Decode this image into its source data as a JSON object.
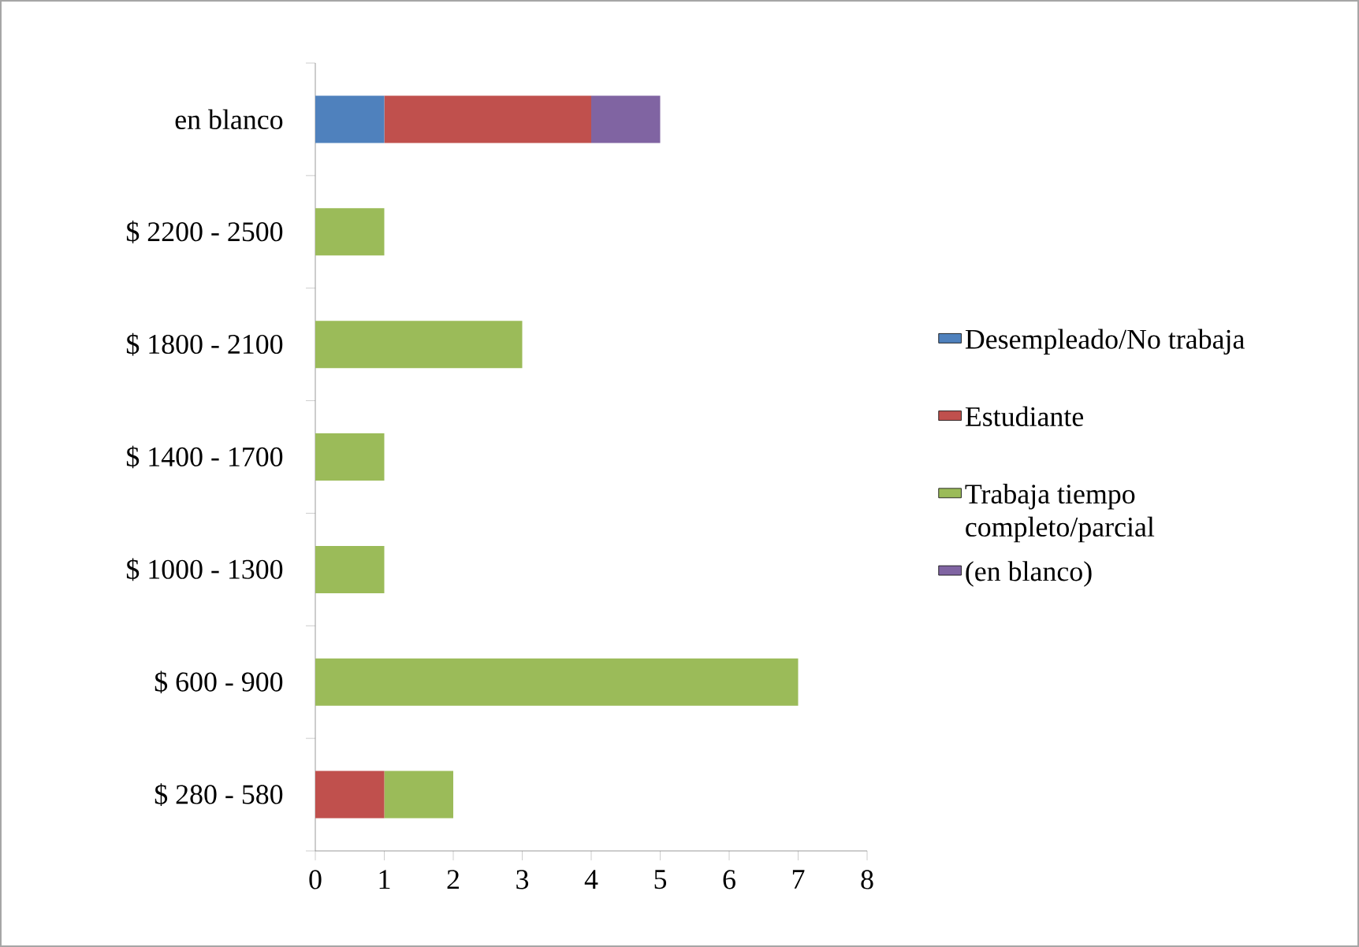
{
  "chart_data": {
    "type": "bar",
    "orientation": "horizontal",
    "stacked": true,
    "categories": [
      "en blanco",
      "$ 2200 - 2500",
      "$ 1800 - 2100",
      "$ 1400 - 1700",
      "$ 1000 - 1300",
      "$ 600 - 900",
      "$ 280 - 580"
    ],
    "series": [
      {
        "name": "Desempleado/No trabaja",
        "color": "#4f81bd",
        "values": [
          1,
          null,
          null,
          null,
          null,
          null,
          null
        ]
      },
      {
        "name": "Estudiante",
        "color": "#c0504d",
        "values": [
          3,
          null,
          null,
          null,
          null,
          null,
          1
        ]
      },
      {
        "name": "Trabaja tiempo completo/parcial",
        "color": "#9bbb59",
        "values": [
          null,
          1,
          3,
          1,
          1,
          7,
          1
        ]
      },
      {
        "name": "(en blanco)",
        "color": "#8064a2",
        "values": [
          1,
          null,
          null,
          null,
          null,
          null,
          null
        ]
      }
    ],
    "xlim": [
      0,
      8
    ],
    "xticks": [
      0,
      1,
      2,
      3,
      4,
      5,
      6,
      7,
      8
    ],
    "grid": false,
    "legend": "right"
  }
}
